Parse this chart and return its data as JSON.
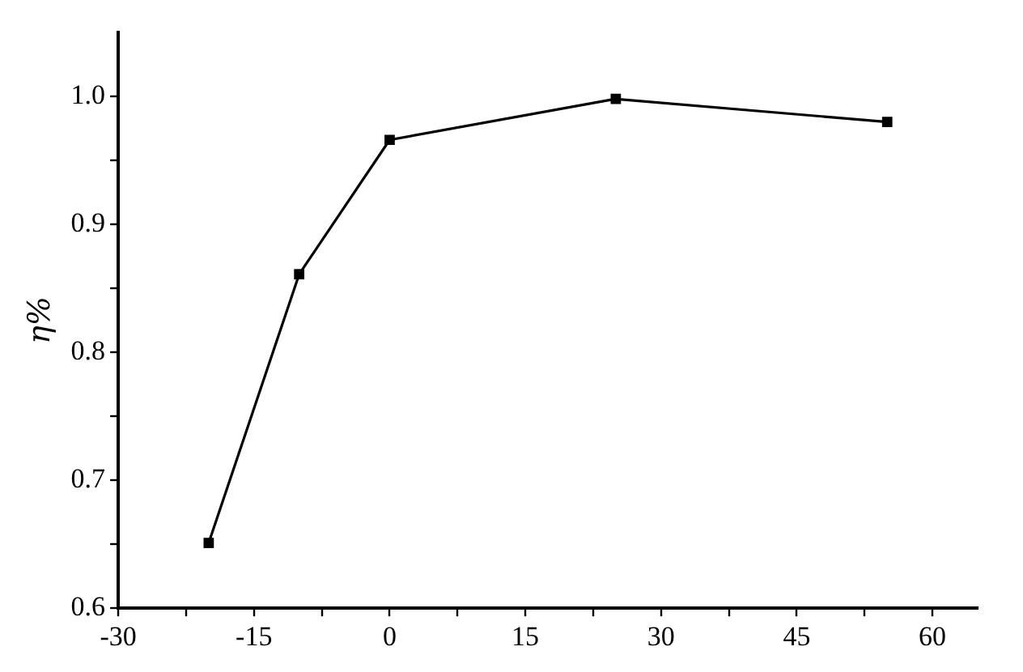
{
  "chart_data": {
    "type": "line",
    "ylabel": "η%",
    "x": [
      -20,
      -10,
      0,
      25,
      55
    ],
    "series": [
      {
        "color": "#000000",
        "values": [
          0.651,
          0.861,
          0.966,
          0.998,
          0.98
        ]
      }
    ],
    "xlim": [
      -30,
      65
    ],
    "xticks": [
      -30,
      {
        "value": -22.5,
        "label": null
      },
      -15,
      {
        "value": -7.5,
        "label": null
      },
      0,
      {
        "value": 7.5,
        "label": null
      },
      15,
      {
        "value": 22.5,
        "label": null
      },
      30,
      {
        "value": 37.5,
        "label": null
      },
      45,
      {
        "value": 52.5,
        "label": null
      },
      60
    ],
    "ylim": [
      0.6,
      1.05
    ],
    "yticks": [
      {
        "value": 0.6,
        "label": "0.6"
      },
      {
        "value": 0.65,
        "label": null
      },
      {
        "value": 0.7,
        "label": "0.7"
      },
      {
        "value": 0.75,
        "label": null
      },
      {
        "value": 0.8,
        "label": "0.8"
      },
      {
        "value": 0.85,
        "label": null
      },
      {
        "value": 0.9,
        "label": "0.9"
      },
      {
        "value": 0.95,
        "label": null
      },
      {
        "value": 1.0,
        "label": "1.0"
      }
    ],
    "grid": false,
    "legend": false,
    "marker": "square",
    "line_style": "solid"
  }
}
